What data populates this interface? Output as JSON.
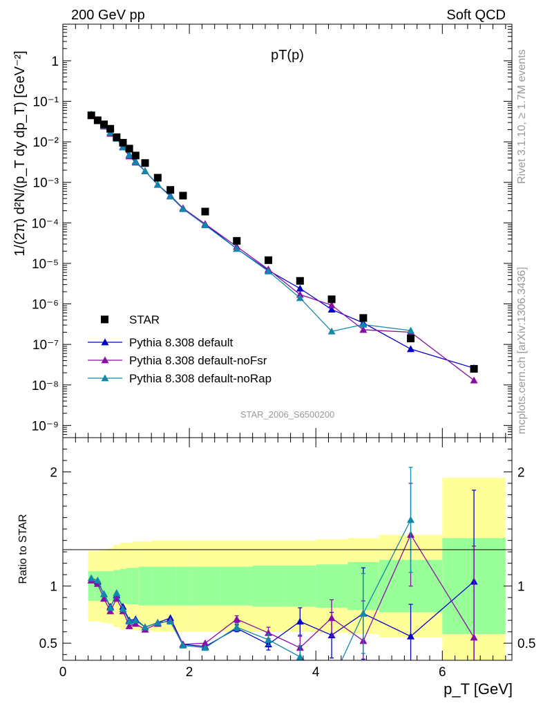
{
  "header": {
    "left": "200 GeV pp",
    "right": "Soft QCD",
    "side_top": "Rivet 3.1.10, ≥ 1.7M events",
    "side_bottom": "mcplots.cern.ch [arXiv:1306.3436]"
  },
  "chart_data": [
    {
      "type": "scatter",
      "panel": "main",
      "title": "pT(p)",
      "analysis_label": "STAR_2006_S6500200",
      "ylabel": "1/(2π) d²N/(p_T dy dp_T) [GeV⁻²]",
      "yscale": "log",
      "ylim": [
        5e-10,
        8
      ],
      "xlim": [
        0,
        7.1
      ],
      "y_tick_labels": [
        "10⁻⁹",
        "10⁻⁸",
        "10⁻⁷",
        "10⁻⁶",
        "10⁻⁵",
        "10⁻⁴",
        "10⁻³",
        "10⁻²",
        "10⁻¹",
        "1"
      ],
      "legend_position": "bottom-left",
      "x": [
        0.45,
        0.55,
        0.65,
        0.75,
        0.85,
        0.95,
        1.05,
        1.15,
        1.3,
        1.5,
        1.7,
        1.9,
        2.25,
        2.75,
        3.25,
        3.75,
        4.25,
        4.75,
        5.5,
        6.5
      ],
      "series": [
        {
          "name": "STAR",
          "color": "#000000",
          "marker": "square",
          "values": [
            0.045,
            0.034,
            0.027,
            0.021,
            0.013,
            0.0095,
            0.0068,
            0.0046,
            0.003,
            0.0013,
            0.00065,
            0.00047,
            0.00019,
            3.6e-05,
            1.2e-05,
            3.7e-06,
            1.3e-06,
            4.5e-07,
            1.4e-07,
            2.5e-08
          ]
        },
        {
          "name": "Pythia 8.308 default",
          "color": "#0000cc",
          "marker": "triangle",
          "values": [
            0.047,
            0.034,
            0.025,
            0.017,
            0.012,
            0.0076,
            0.0048,
            0.0033,
            0.0019,
            0.00088,
            0.00047,
            0.00023,
            9.3e-05,
            2.3e-05,
            6.7e-06,
            2.4e-06,
            7.3e-07,
            3.4e-07,
            7.7e-08,
            2.6e-08
          ]
        },
        {
          "name": "Pythia 8.308 default-noFsr",
          "color": "#8a0ca6",
          "marker": "triangle",
          "values": [
            0.046,
            0.034,
            0.024,
            0.016,
            0.012,
            0.0074,
            0.0044,
            0.0031,
            0.0019,
            0.00087,
            0.00045,
            0.00023,
            9.4e-05,
            2.6e-05,
            7.1e-06,
            1.7e-06,
            9.3e-07,
            2.3e-07,
            2e-07,
            1.3e-08
          ]
        },
        {
          "name": "Pythia 8.308 default-noRap",
          "color": "#1188aa",
          "marker": "triangle",
          "values": [
            0.048,
            0.035,
            0.025,
            0.017,
            0.012,
            0.0073,
            0.0047,
            0.0032,
            0.0019,
            0.00088,
            0.00045,
            0.00022,
            8.8e-05,
            2.3e-05,
            6.4e-06,
            1.4e-06,
            2.1e-07,
            3.1e-07,
            2.2e-07,
            null
          ]
        }
      ]
    },
    {
      "type": "line",
      "panel": "ratio",
      "ylabel": "Ratio to STAR",
      "xlabel": "p_T [GeV]",
      "ylim": [
        0.35,
        2.3
      ],
      "xlim": [
        0,
        7.1
      ],
      "y_tick_labels": [
        "0.5",
        "1",
        "2"
      ],
      "x_tick_labels": [
        "0",
        "2",
        "4",
        "6"
      ],
      "x": [
        0.45,
        0.55,
        0.65,
        0.75,
        0.85,
        0.95,
        1.05,
        1.15,
        1.3,
        1.5,
        1.7,
        1.9,
        2.25,
        2.75,
        3.25,
        3.75,
        4.25,
        4.75,
        5.5,
        6.5
      ],
      "x_low": [
        0.4,
        0.5,
        0.6,
        0.7,
        0.8,
        0.9,
        1.0,
        1.1,
        1.2,
        1.4,
        1.6,
        1.8,
        2.0,
        2.5,
        3.0,
        3.5,
        4.0,
        4.5,
        5.0,
        6.0
      ],
      "x_high": [
        0.5,
        0.6,
        0.7,
        0.8,
        0.9,
        1.0,
        1.1,
        1.2,
        1.4,
        1.6,
        1.8,
        2.0,
        2.5,
        3.0,
        3.5,
        4.0,
        4.5,
        5.0,
        6.0,
        7.0
      ],
      "band_inner": [
        0.13,
        0.13,
        0.13,
        0.13,
        0.14,
        0.15,
        0.16,
        0.16,
        0.17,
        0.17,
        0.17,
        0.17,
        0.17,
        0.17,
        0.18,
        0.18,
        0.19,
        0.21,
        0.23,
        0.42
      ],
      "band_outer": [
        0.31,
        0.31,
        0.32,
        0.33,
        0.36,
        0.38,
        0.38,
        0.39,
        0.39,
        0.4,
        0.4,
        0.4,
        0.4,
        0.4,
        0.4,
        0.4,
        0.41,
        0.42,
        0.45,
        0.95
      ],
      "band_colors": {
        "inner": "#99ff99",
        "outer": "#ffff99"
      },
      "series": [
        {
          "name": "Pythia 8.308 default",
          "color": "#0000cc",
          "values": [
            1.05,
            1.04,
            0.93,
            0.82,
            0.92,
            0.82,
            0.7,
            0.71,
            0.64,
            0.68,
            0.72,
            0.49,
            0.47,
            0.63,
            0.49,
            0.69,
            0.57,
            0.76,
            0.56,
            1.04
          ],
          "err": [
            0.02,
            0.02,
            0.02,
            0.02,
            0.02,
            0.02,
            0.02,
            0.02,
            0.02,
            0.02,
            0.02,
            0.02,
            0.02,
            0.03,
            0.05,
            0.12,
            0.2,
            0.4,
            0.28,
            0.8
          ]
        },
        {
          "name": "Pythia 8.308 default-noFsr",
          "color": "#8a0ca6",
          "values": [
            1.05,
            1.02,
            0.89,
            0.78,
            0.89,
            0.78,
            0.65,
            0.67,
            0.62,
            0.67,
            0.7,
            0.49,
            0.5,
            0.71,
            0.59,
            0.46,
            0.72,
            0.52,
            1.45,
            0.55
          ],
          "err": [
            0.02,
            0.02,
            0.02,
            0.02,
            0.02,
            0.02,
            0.02,
            0.02,
            0.02,
            0.02,
            0.02,
            0.02,
            0.02,
            0.03,
            0.05,
            0.1,
            0.16,
            0.35,
            0.45,
            0.8
          ]
        },
        {
          "name": "Pythia 8.308 default-noRap",
          "color": "#1188aa",
          "values": [
            1.07,
            1.05,
            0.93,
            0.81,
            0.94,
            0.8,
            0.69,
            0.7,
            0.64,
            0.68,
            0.69,
            0.48,
            0.46,
            0.64,
            0.53,
            0.38,
            0.16,
            0.76,
            1.58,
            null
          ],
          "err": [
            0.02,
            0.02,
            0.02,
            0.02,
            0.02,
            0.02,
            0.02,
            0.02,
            0.02,
            0.02,
            0.02,
            0.02,
            0.02,
            0.03,
            0.05,
            0.1,
            0.12,
            0.35,
            0.46,
            0
          ]
        }
      ]
    }
  ]
}
